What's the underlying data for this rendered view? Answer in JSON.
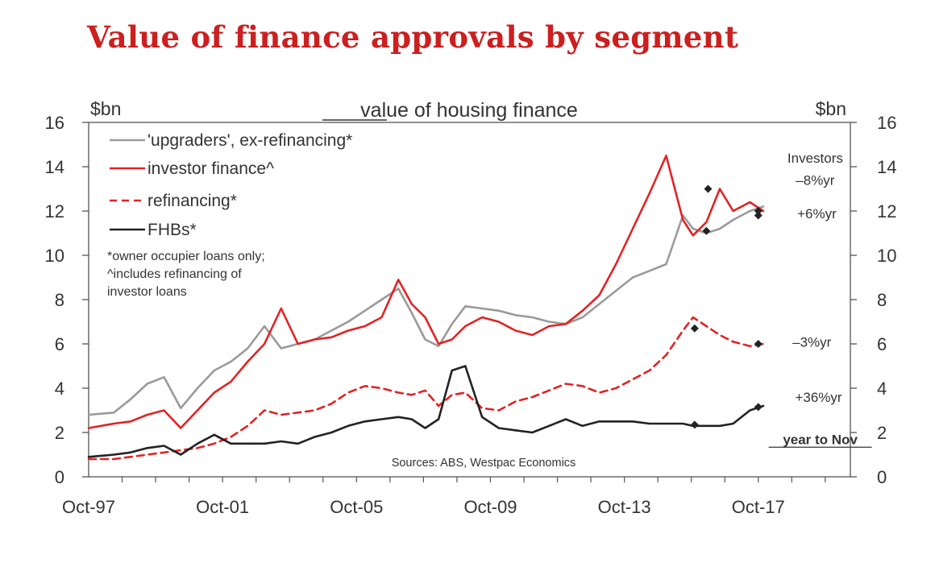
{
  "chart_data": {
    "type": "line",
    "title": "Value of finance approvals by segment",
    "subtitle": "value of housing finance",
    "ylabel_left": "$bn",
    "ylabel_right": "$bn",
    "ylim": [
      0,
      16
    ],
    "yticks": [
      0,
      2,
      4,
      6,
      8,
      10,
      12,
      14,
      16
    ],
    "xlim": [
      1997.75,
      2020.5
    ],
    "xticks": [
      {
        "label": "Oct-97",
        "x": 1997.75
      },
      {
        "label": "Oct-01",
        "x": 2001.75
      },
      {
        "label": "Oct-05",
        "x": 2005.75
      },
      {
        "label": "Oct-09",
        "x": 2009.75
      },
      {
        "label": "Oct-13",
        "x": 2013.75
      },
      {
        "label": "Oct-17",
        "x": 2017.75
      }
    ],
    "grid": false,
    "legend": "top-left",
    "notes": [
      "*owner occupier loans only;",
      "^includes refinancing of",
      "investor loans"
    ],
    "source": "Sources: ABS, Westpac Economics",
    "annotations": [
      {
        "text": "Investors",
        "x": 2019.45,
        "y": 14.4
      },
      {
        "text": "–8%yr",
        "x": 2019.45,
        "y": 13.4
      },
      {
        "text": "+6%yr",
        "x": 2019.5,
        "y": 11.9
      },
      {
        "text": "–3%yr",
        "x": 2019.35,
        "y": 6.1
      },
      {
        "text": "+36%yr",
        "x": 2019.55,
        "y": 3.6
      },
      {
        "text": "year to Nov",
        "x": 2019.6,
        "y": 1.7,
        "underline": true
      }
    ],
    "series": [
      {
        "name": "'upgraders', ex-refinancing*",
        "color": "#9a9a9a",
        "dash": "solid",
        "width": 2.6,
        "x": [
          1997.75,
          1998.5,
          1999.0,
          1999.5,
          2000.0,
          2000.5,
          2001.0,
          2001.5,
          2002.0,
          2002.5,
          2003.0,
          2003.5,
          2004.0,
          2004.5,
          2005.0,
          2005.5,
          2006.0,
          2006.5,
          2007.0,
          2007.4,
          2007.8,
          2008.2,
          2008.6,
          2009.0,
          2009.5,
          2010.0,
          2010.5,
          2011.0,
          2011.5,
          2012.0,
          2012.5,
          2013.0,
          2013.5,
          2014.0,
          2014.5,
          2015.0,
          2015.5,
          2015.8,
          2016.2,
          2016.6,
          2017.0,
          2017.5,
          2017.9
        ],
        "y": [
          2.8,
          2.9,
          3.5,
          4.2,
          4.5,
          3.1,
          4.0,
          4.8,
          5.2,
          5.8,
          6.8,
          5.8,
          6.0,
          6.2,
          6.6,
          7.0,
          7.5,
          8.0,
          8.5,
          7.4,
          6.2,
          5.9,
          6.9,
          7.7,
          7.6,
          7.5,
          7.3,
          7.2,
          7.0,
          6.9,
          7.2,
          7.8,
          8.4,
          9.0,
          9.3,
          9.6,
          11.8,
          11.2,
          11.0,
          11.2,
          11.6,
          12.0,
          12.2
        ]
      },
      {
        "name": "investor finance^",
        "color": "#e02424",
        "dash": "solid",
        "width": 2.6,
        "x": [
          1997.75,
          1998.5,
          1999.0,
          1999.5,
          2000.0,
          2000.5,
          2001.0,
          2001.5,
          2002.0,
          2002.5,
          2003.0,
          2003.5,
          2004.0,
          2004.5,
          2005.0,
          2005.5,
          2006.0,
          2006.5,
          2007.0,
          2007.4,
          2007.8,
          2008.2,
          2008.6,
          2009.0,
          2009.5,
          2010.0,
          2010.5,
          2011.0,
          2011.5,
          2012.0,
          2012.5,
          2013.0,
          2013.5,
          2014.0,
          2014.5,
          2015.0,
          2015.5,
          2015.8,
          2016.2,
          2016.6,
          2017.0,
          2017.5,
          2017.9
        ],
        "y": [
          2.2,
          2.4,
          2.5,
          2.8,
          3.0,
          2.2,
          3.0,
          3.8,
          4.3,
          5.2,
          6.0,
          7.6,
          6.0,
          6.2,
          6.3,
          6.6,
          6.8,
          7.2,
          8.9,
          7.8,
          7.2,
          6.0,
          6.2,
          6.8,
          7.2,
          7.0,
          6.6,
          6.4,
          6.8,
          6.9,
          7.5,
          8.2,
          9.6,
          11.2,
          12.8,
          14.5,
          11.6,
          10.9,
          11.5,
          13.0,
          12.0,
          12.4,
          12.0
        ]
      },
      {
        "name": "refinancing*",
        "color": "#e02424",
        "dash": "dashed",
        "width": 2.6,
        "x": [
          1997.75,
          1998.5,
          1999.0,
          1999.5,
          2000.0,
          2000.5,
          2001.0,
          2001.5,
          2002.0,
          2002.5,
          2003.0,
          2003.5,
          2004.0,
          2004.5,
          2005.0,
          2005.5,
          2006.0,
          2006.5,
          2007.0,
          2007.4,
          2007.8,
          2008.2,
          2008.6,
          2009.0,
          2009.5,
          2010.0,
          2010.5,
          2011.0,
          2011.5,
          2012.0,
          2012.5,
          2013.0,
          2013.5,
          2014.0,
          2014.5,
          2015.0,
          2015.5,
          2015.8,
          2016.2,
          2016.6,
          2017.0,
          2017.5,
          2017.9
        ],
        "y": [
          0.8,
          0.8,
          0.9,
          1.0,
          1.1,
          1.2,
          1.3,
          1.5,
          1.8,
          2.3,
          3.0,
          2.8,
          2.9,
          3.0,
          3.3,
          3.8,
          4.1,
          4.0,
          3.8,
          3.7,
          3.9,
          3.2,
          3.7,
          3.8,
          3.1,
          3.0,
          3.4,
          3.6,
          3.9,
          4.2,
          4.1,
          3.8,
          4.0,
          4.4,
          4.8,
          5.5,
          6.6,
          7.2,
          6.8,
          6.4,
          6.1,
          5.9,
          6.0
        ]
      },
      {
        "name": "FHBs*",
        "color": "#222222",
        "dash": "solid",
        "width": 2.6,
        "x": [
          1997.75,
          1998.5,
          1999.0,
          1999.5,
          2000.0,
          2000.5,
          2001.0,
          2001.5,
          2002.0,
          2002.5,
          2003.0,
          2003.5,
          2004.0,
          2004.5,
          2005.0,
          2005.5,
          2006.0,
          2006.5,
          2007.0,
          2007.4,
          2007.8,
          2008.2,
          2008.6,
          2009.0,
          2009.5,
          2010.0,
          2010.5,
          2011.0,
          2011.5,
          2012.0,
          2012.5,
          2013.0,
          2013.5,
          2014.0,
          2014.5,
          2015.0,
          2015.5,
          2015.8,
          2016.2,
          2016.6,
          2017.0,
          2017.5,
          2017.9
        ],
        "y": [
          0.9,
          1.0,
          1.1,
          1.3,
          1.4,
          1.0,
          1.5,
          1.9,
          1.5,
          1.5,
          1.5,
          1.6,
          1.5,
          1.8,
          2.0,
          2.3,
          2.5,
          2.6,
          2.7,
          2.6,
          2.2,
          2.6,
          4.8,
          5.0,
          2.7,
          2.2,
          2.1,
          2.0,
          2.3,
          2.6,
          2.3,
          2.5,
          2.5,
          2.5,
          2.4,
          2.4,
          2.4,
          2.3,
          2.3,
          2.3,
          2.4,
          3.0,
          3.2
        ]
      }
    ],
    "markers": [
      {
        "x": 2016.25,
        "y": 13.0,
        "series": 1
      },
      {
        "x": 2016.2,
        "y": 11.1,
        "series": 0
      },
      {
        "x": 2017.75,
        "y": 11.8,
        "series": 0
      },
      {
        "x": 2017.75,
        "y": 12.0,
        "series": 1
      },
      {
        "x": 2015.85,
        "y": 6.7,
        "series": 2
      },
      {
        "x": 2017.75,
        "y": 6.0,
        "series": 2
      },
      {
        "x": 2015.85,
        "y": 2.35,
        "series": 3
      },
      {
        "x": 2017.75,
        "y": 3.15,
        "series": 3
      }
    ]
  }
}
